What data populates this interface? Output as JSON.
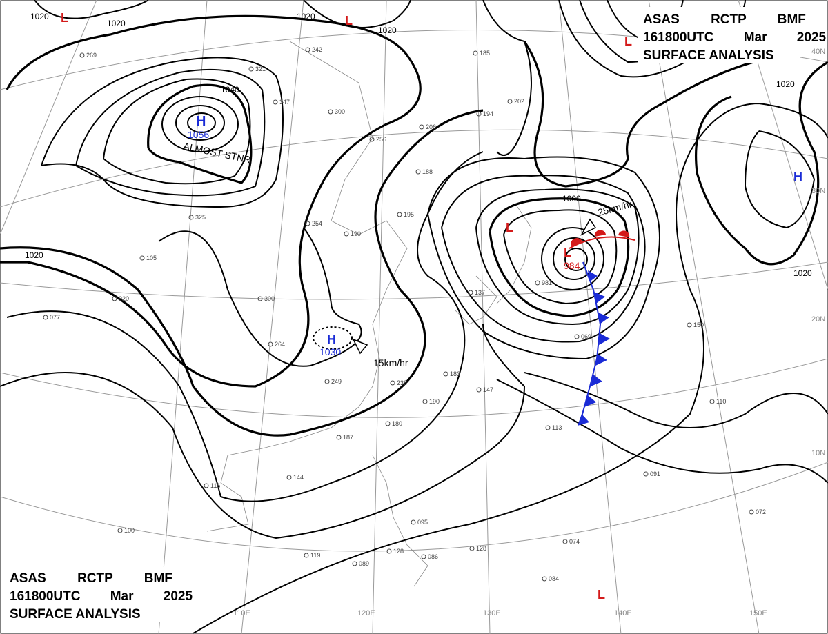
{
  "header": {
    "lines": [
      "ASAS RCTP BMF",
      "161800UTC Mar 2025",
      "SURFACE ANALYSIS"
    ]
  },
  "pressure_centers": [
    {
      "symbol": "H",
      "value": 1056
    },
    {
      "symbol": "H",
      "value": 1030
    },
    {
      "symbol": "L",
      "value": 984
    },
    {
      "symbol": "H"
    },
    {
      "symbol": "L"
    },
    {
      "symbol": "L"
    },
    {
      "symbol": "L"
    },
    {
      "symbol": "L"
    },
    {
      "symbol": "L"
    }
  ],
  "annotations": {
    "stationary": "ALMOST STNR",
    "motions": [
      "25km/hr",
      "15km/hr"
    ]
  },
  "isobar_labels": [
    1020,
    1020,
    1020,
    1020,
    1040,
    1000,
    1020,
    1020,
    1020
  ],
  "latitude_labels": [
    "40N",
    "30N",
    "20N",
    "10N"
  ],
  "longitude_labels": [
    "110E",
    "120E",
    "130E",
    "140E",
    "150E"
  ],
  "stations": [
    "269",
    "242",
    "321",
    "347",
    "300",
    "256",
    "206",
    "185",
    "202",
    "194",
    "188",
    "195",
    "254",
    "190",
    "325",
    "105",
    "920",
    "077",
    "300",
    "264",
    "249",
    "238",
    "190",
    "180",
    "187",
    "144",
    "116",
    "100",
    "119",
    "089",
    "128",
    "095",
    "086",
    "128",
    "074",
    "084",
    "072",
    "091",
    "110",
    "150",
    "113",
    "147",
    "183",
    "981",
    "069",
    "137"
  ]
}
